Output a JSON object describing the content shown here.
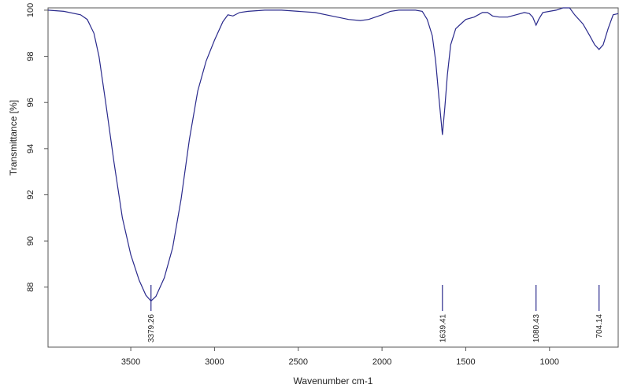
{
  "chart_data": {
    "type": "line",
    "title": "",
    "xlabel": "Wavenumber cm-1",
    "ylabel": "Transmittance [%]",
    "x_reversed": true,
    "xlim": [
      3994,
      590
    ],
    "ylim": [
      85.4,
      100.1
    ],
    "x_ticks": [
      3500,
      3000,
      2500,
      2000,
      1500,
      1000
    ],
    "y_ticks": [
      88,
      90,
      92,
      94,
      96,
      98,
      100
    ],
    "grid": false,
    "line_color": "#2a2a8c",
    "series": [
      {
        "points": [
          [
            3994,
            100.0
          ],
          [
            3900,
            99.95
          ],
          [
            3800,
            99.8
          ],
          [
            3760,
            99.6
          ],
          [
            3720,
            99.0
          ],
          [
            3690,
            98.0
          ],
          [
            3650,
            96.0
          ],
          [
            3600,
            93.4
          ],
          [
            3550,
            91.0
          ],
          [
            3500,
            89.4
          ],
          [
            3450,
            88.3
          ],
          [
            3410,
            87.65
          ],
          [
            3379.26,
            87.4
          ],
          [
            3350,
            87.6
          ],
          [
            3300,
            88.4
          ],
          [
            3250,
            89.7
          ],
          [
            3200,
            91.8
          ],
          [
            3150,
            94.4
          ],
          [
            3100,
            96.5
          ],
          [
            3050,
            97.8
          ],
          [
            3000,
            98.7
          ],
          [
            2950,
            99.5
          ],
          [
            2920,
            99.8
          ],
          [
            2890,
            99.75
          ],
          [
            2850,
            99.9
          ],
          [
            2800,
            99.95
          ],
          [
            2700,
            100.0
          ],
          [
            2600,
            100.0
          ],
          [
            2500,
            99.95
          ],
          [
            2400,
            99.9
          ],
          [
            2300,
            99.75
          ],
          [
            2200,
            99.6
          ],
          [
            2130,
            99.55
          ],
          [
            2080,
            99.6
          ],
          [
            2000,
            99.8
          ],
          [
            1950,
            99.95
          ],
          [
            1900,
            100.0
          ],
          [
            1800,
            100.0
          ],
          [
            1760,
            99.95
          ],
          [
            1730,
            99.6
          ],
          [
            1700,
            98.9
          ],
          [
            1680,
            97.8
          ],
          [
            1660,
            96.2
          ],
          [
            1639.41,
            94.6
          ],
          [
            1625,
            95.8
          ],
          [
            1610,
            97.2
          ],
          [
            1590,
            98.5
          ],
          [
            1560,
            99.2
          ],
          [
            1530,
            99.4
          ],
          [
            1500,
            99.6
          ],
          [
            1450,
            99.7
          ],
          [
            1400,
            99.9
          ],
          [
            1370,
            99.9
          ],
          [
            1340,
            99.75
          ],
          [
            1300,
            99.7
          ],
          [
            1250,
            99.7
          ],
          [
            1200,
            99.8
          ],
          [
            1150,
            99.9
          ],
          [
            1120,
            99.85
          ],
          [
            1100,
            99.7
          ],
          [
            1080.43,
            99.35
          ],
          [
            1065,
            99.6
          ],
          [
            1040,
            99.9
          ],
          [
            1000,
            99.95
          ],
          [
            960,
            100.0
          ],
          [
            920,
            100.1
          ],
          [
            880,
            100.1
          ],
          [
            850,
            99.8
          ],
          [
            800,
            99.4
          ],
          [
            760,
            98.9
          ],
          [
            730,
            98.5
          ],
          [
            704.14,
            98.3
          ],
          [
            680,
            98.5
          ],
          [
            650,
            99.2
          ],
          [
            620,
            99.8
          ],
          [
            590,
            99.85
          ]
        ]
      }
    ],
    "peaks": [
      {
        "x": 3379.26,
        "label": "3379.26"
      },
      {
        "x": 1639.41,
        "label": "1639.41"
      },
      {
        "x": 1080.43,
        "label": "1080.43"
      },
      {
        "x": 704.14,
        "label": "704.14"
      }
    ]
  }
}
